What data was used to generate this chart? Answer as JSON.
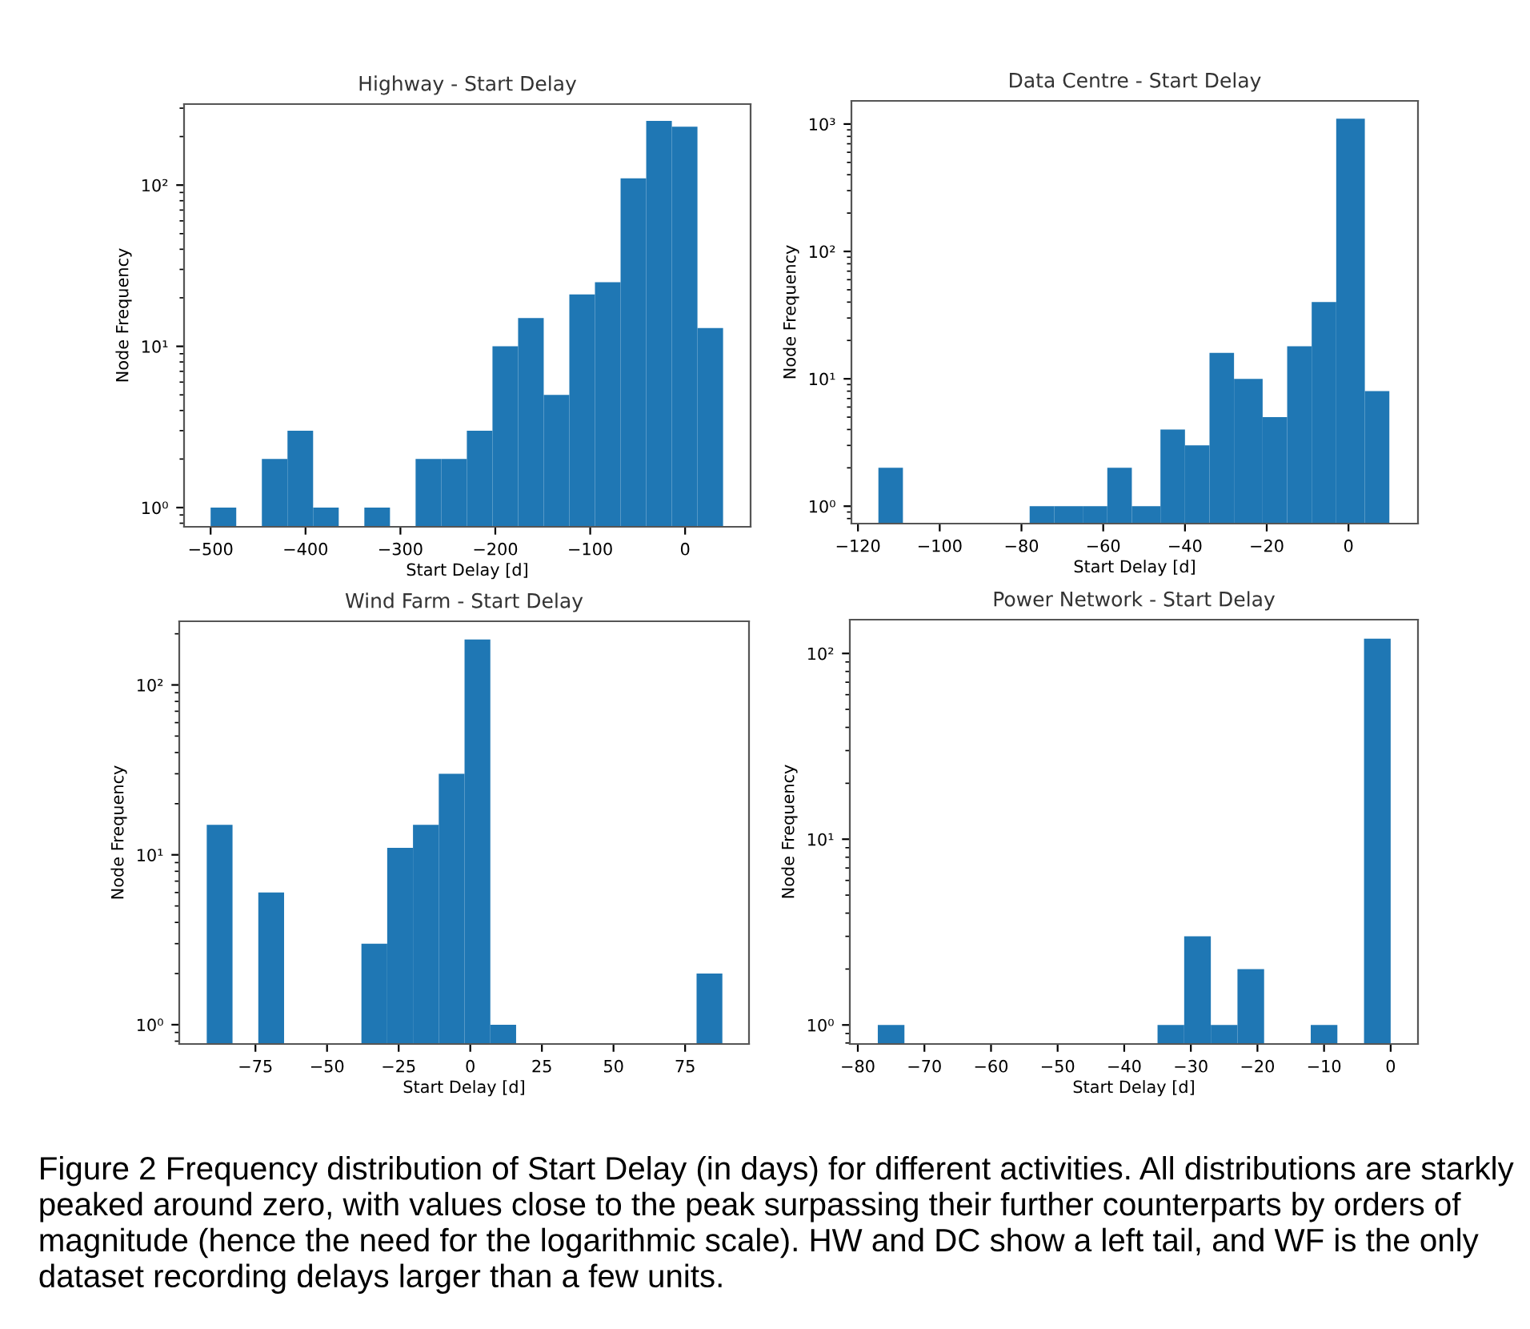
{
  "chart_data": [
    {
      "type": "histogram",
      "title": "Highway - Start Delay",
      "xlabel": "Start Delay [d]",
      "ylabel": "Node Frequency",
      "log": "y",
      "color": "#1f77b4",
      "bins": [
        -500,
        -473,
        -446,
        -419,
        -392,
        -365,
        -338,
        -311,
        -284,
        -257,
        -230,
        -203,
        -176,
        -149,
        -122,
        -95,
        -68,
        -41,
        -14,
        13,
        40
      ],
      "values": [
        1,
        null,
        2,
        3,
        1,
        null,
        1,
        null,
        2,
        2,
        3,
        10,
        15,
        5,
        21,
        25,
        110,
        250,
        230,
        13
      ],
      "xlim": [
        -528,
        69
      ],
      "ylim": [
        0.76,
        318
      ],
      "xticks": [
        {
          "value": -500,
          "label": "−500"
        },
        {
          "value": -400,
          "label": "−400"
        },
        {
          "value": -300,
          "label": "−300"
        },
        {
          "value": -200,
          "label": "−200"
        },
        {
          "value": -100,
          "label": "−100"
        },
        0
      ],
      "yticks": [
        {
          "value": 1,
          "label": "10⁰"
        },
        {
          "value": 10,
          "label": "10¹"
        },
        {
          "value": 100,
          "label": "10²"
        }
      ]
    },
    {
      "type": "histogram",
      "title": "Data Centre - Start Delay",
      "xlabel": "Start Delay [d]",
      "ylabel": "Node Frequency",
      "log": "y",
      "color": "#1f77b4",
      "bins": [
        -115,
        -109,
        -78,
        -72,
        -65,
        -59,
        -53,
        -46,
        -40,
        -34,
        -28,
        -21,
        -15,
        -9,
        -3,
        4,
        10
      ],
      "values": [
        2,
        null,
        1,
        1,
        1,
        2,
        1,
        4,
        3,
        16,
        10,
        5,
        18,
        40,
        1100,
        8
      ],
      "xlim": [
        -121.6,
        17
      ],
      "ylim": [
        0.73,
        1520
      ],
      "xticks": [
        {
          "value": -120,
          "label": "−120"
        },
        {
          "value": -100,
          "label": "−100"
        },
        {
          "value": -80,
          "label": "−80"
        },
        {
          "value": -60,
          "label": "−60"
        },
        {
          "value": -40,
          "label": "−40"
        },
        {
          "value": -20,
          "label": "−20"
        },
        0
      ],
      "yticks": [
        {
          "value": 1,
          "label": "10⁰"
        },
        {
          "value": 10,
          "label": "10¹"
        },
        {
          "value": 100,
          "label": "10²"
        },
        {
          "value": 1000,
          "label": "10³"
        }
      ]
    },
    {
      "type": "histogram",
      "title": "Wind Farm - Start Delay",
      "xlabel": "Start Delay [d]",
      "ylabel": "Node Frequency",
      "log": "y",
      "color": "#1f77b4",
      "bins": [
        -92,
        -83,
        -74,
        -65,
        -38,
        -29,
        -20,
        -11,
        -2,
        7,
        16,
        79,
        88
      ],
      "values": [
        15,
        null,
        6,
        null,
        3,
        11,
        15,
        30,
        185,
        1,
        null,
        2
      ],
      "xlim": [
        -101.6,
        97.3
      ],
      "ylim": [
        0.77,
        237
      ],
      "xticks": [
        {
          "value": -75,
          "label": "−75"
        },
        {
          "value": -50,
          "label": "−50"
        },
        {
          "value": -25,
          "label": "−25"
        },
        0,
        25,
        50,
        75
      ],
      "yticks": [
        {
          "value": 1,
          "label": "10⁰"
        },
        {
          "value": 10,
          "label": "10¹"
        },
        {
          "value": 100,
          "label": "10²"
        }
      ]
    },
    {
      "type": "histogram",
      "title": "Power Network - Start Delay",
      "xlabel": "Start Delay [d]",
      "ylabel": "Node Frequency",
      "log": "y",
      "color": "#1f77b4",
      "bins": [
        -77,
        -73,
        -35,
        -31,
        -27,
        -23,
        -19,
        -12,
        -8,
        -4,
        0
      ],
      "values": [
        1,
        null,
        1,
        3,
        1,
        2,
        null,
        1,
        null,
        120
      ],
      "xlim": [
        -81.2,
        4.1
      ],
      "ylim": [
        0.79,
        152
      ],
      "xticks": [
        {
          "value": -80,
          "label": "−80"
        },
        {
          "value": -70,
          "label": "−70"
        },
        {
          "value": -60,
          "label": "−60"
        },
        {
          "value": -50,
          "label": "−50"
        },
        {
          "value": -40,
          "label": "−40"
        },
        {
          "value": -30,
          "label": "−30"
        },
        {
          "value": -20,
          "label": "−20"
        },
        {
          "value": -10,
          "label": "−10"
        },
        0
      ],
      "yticks": [
        {
          "value": 1,
          "label": "10⁰"
        },
        {
          "value": 10,
          "label": "10¹"
        },
        {
          "value": 100,
          "label": "10²"
        }
      ],
      "annotations": [
        "Figure 2 Frequency distribution of Start Delay (in days) for different activities. All distributions are starkly peaked around zero, with values close to the peak surpassing their further counterparts by orders of magnitude (hence the need for the logarithmic scale). HW and DC show a left tail, and WF is the only dataset recording delays larger than a few units."
      ]
    }
  ]
}
